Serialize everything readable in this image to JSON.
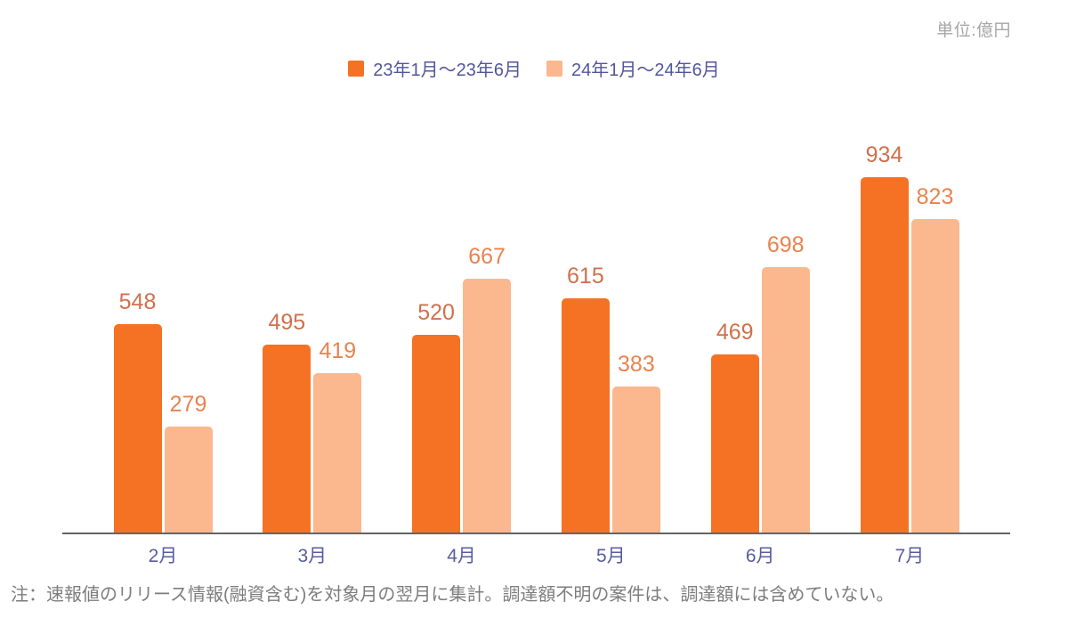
{
  "unit_label": "単位:億円",
  "note": "注：速報値のリリース情報(融資含む)を対象月の翌月に集計。調達額不明の案件は、調達額には含めていない。",
  "chart_data": {
    "type": "bar",
    "unit": "億円",
    "categories": [
      "2月",
      "3月",
      "4月",
      "5月",
      "6月",
      "7月"
    ],
    "series": [
      {
        "name": "23年1月～23年6月",
        "color": "#f57224",
        "label_color": "#d0704c",
        "values": [
          548,
          495,
          520,
          615,
          469,
          934
        ]
      },
      {
        "name": "24年1月～24年6月",
        "color": "#fbb78d",
        "label_color": "#e9834f",
        "values": [
          279,
          419,
          667,
          383,
          698,
          823
        ]
      }
    ],
    "ylim": [
      0,
      1000
    ],
    "grid": false,
    "legend_position": "top",
    "value_labels": true,
    "x_label_color": "#585ca1",
    "legend_text_color": "#52569a",
    "axis_line_color": "#646464",
    "note_color": "#7d7d7d",
    "unit_label_color": "#a6a6a6"
  }
}
